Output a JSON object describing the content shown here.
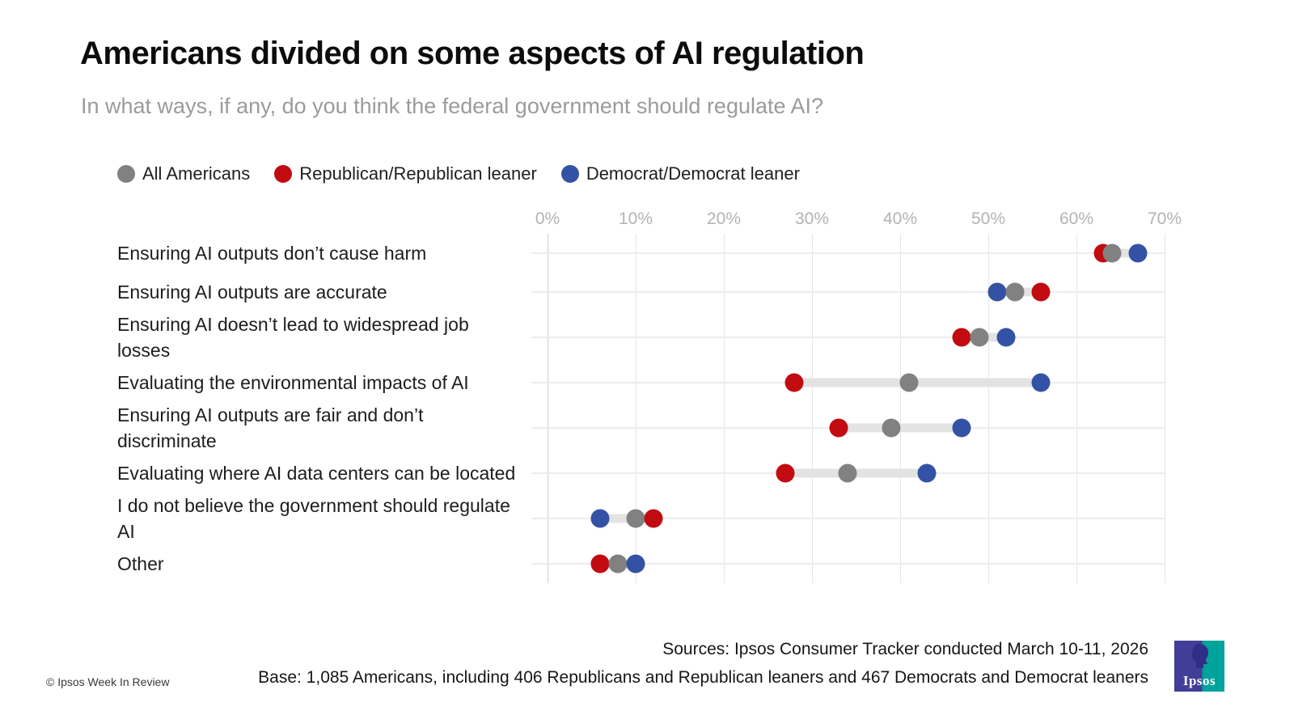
{
  "header": {
    "title": "Americans divided on some aspects of AI regulation",
    "subtitle": "In what ways, if any, do you think the federal government should regulate AI?"
  },
  "colors": {
    "all_americans": "#818181",
    "republican": "#c20b10",
    "democrat": "#3452a5",
    "connector": "#e3e3e3",
    "gridline": "#e6e6e6",
    "axis_label": "#b3b3b3",
    "logo_indigo": "#413e97",
    "logo_teal": "#00a39b"
  },
  "chart_data": {
    "type": "scatter",
    "subtype": "dumbbell-dot-plot",
    "unit": "percent",
    "title": "Americans divided on some aspects of AI regulation",
    "xlabel": "",
    "ylabel": "",
    "xlim": [
      0,
      70
    ],
    "x_ticks": [
      "0%",
      "10%",
      "20%",
      "30%",
      "40%",
      "50%",
      "60%",
      "70%"
    ],
    "grid": true,
    "legend_position": "top",
    "categories": [
      "Ensuring AI outputs don’t cause harm",
      "Ensuring AI outputs are accurate",
      "Ensuring AI doesn’t lead to widespread job losses",
      "Evaluating the environmental impacts of AI",
      "Ensuring AI outputs are fair and don’t discriminate",
      "Evaluating where AI data centers can be located",
      "I do not believe the government should regulate AI",
      "Other"
    ],
    "series": [
      {
        "name": "All Americans",
        "color": "#818181",
        "values": [
          64,
          53,
          49,
          41,
          39,
          34,
          10,
          8
        ]
      },
      {
        "name": "Republican/Republican leaner",
        "color": "#c20b10",
        "values": [
          63,
          56,
          47,
          28,
          33,
          27,
          12,
          6
        ]
      },
      {
        "name": "Democrat/Democrat leaner",
        "color": "#3452a5",
        "values": [
          67,
          51,
          52,
          56,
          47,
          43,
          6,
          10
        ]
      }
    ]
  },
  "footer": {
    "sources": "Sources: Ipsos Consumer Tracker conducted March 10-11, 2026",
    "base": "Base: 1,085 Americans, including 406 Republicans and Republican leaners and 467 Democrats and Democrat leaners",
    "copyright": "© Ipsos Week In Review",
    "logo_text": "Ipsos"
  }
}
